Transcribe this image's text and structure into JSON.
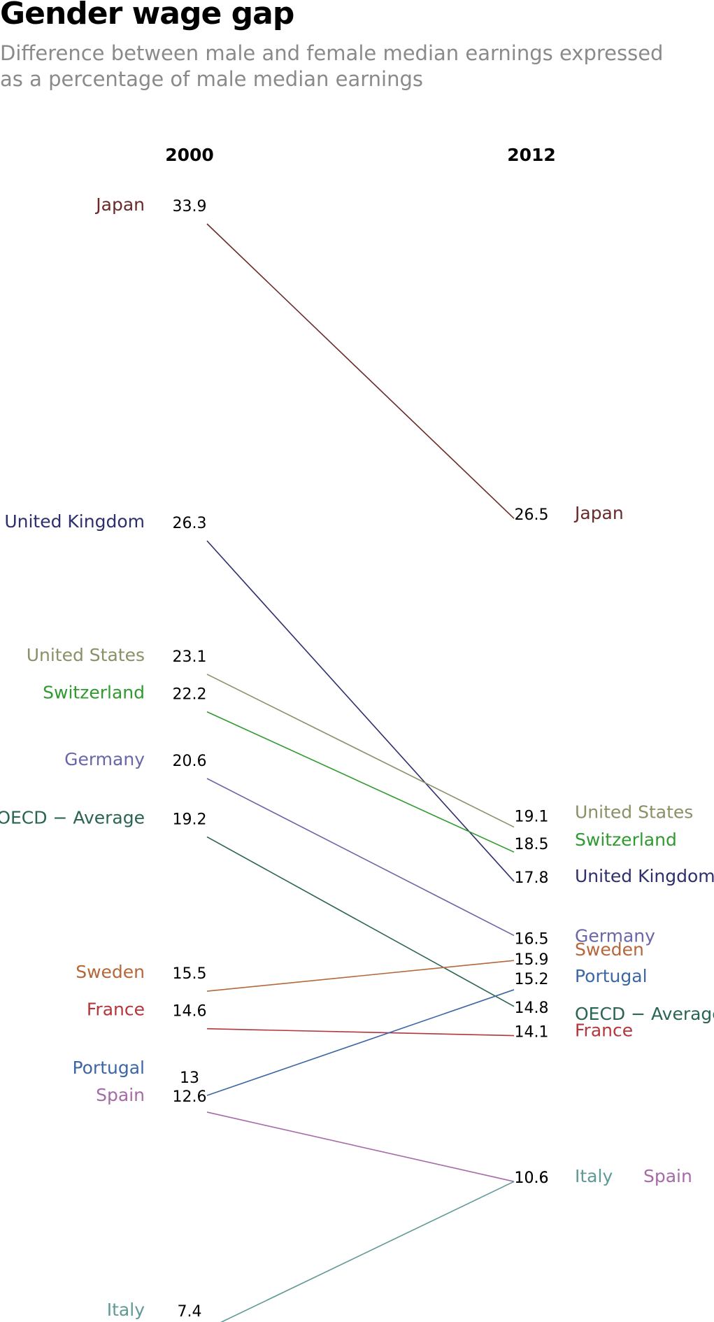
{
  "title": "Gender wage gap",
  "subtitle": "Difference between male and female median earnings expressed as a percentage of male median earnings",
  "chart_data": {
    "type": "line",
    "x": [
      "2000",
      "2012"
    ],
    "series": [
      {
        "name": "Japan",
        "values": [
          33.9,
          26.5
        ],
        "color": "#6b2a2a",
        "values_label": [
          "33.9",
          "26.5"
        ]
      },
      {
        "name": "United Kingdom",
        "values": [
          26.3,
          17.8
        ],
        "color": "#2e2f6f",
        "values_label": [
          "26.3",
          "17.8"
        ]
      },
      {
        "name": "United States",
        "values": [
          23.1,
          19.1
        ],
        "color": "#8a9166",
        "values_label": [
          "23.1",
          "19.1"
        ]
      },
      {
        "name": "Switzerland",
        "values": [
          22.2,
          18.5
        ],
        "color": "#2f9a2f",
        "values_label": [
          "22.2",
          "18.5"
        ]
      },
      {
        "name": "Germany",
        "values": [
          20.6,
          16.5
        ],
        "color": "#6a67a8",
        "values_label": [
          "20.6",
          "16.5"
        ]
      },
      {
        "name": "OECD − Average",
        "values": [
          19.2,
          14.8
        ],
        "color": "#2a6455",
        "values_label": [
          "19.2",
          "14.8"
        ]
      },
      {
        "name": "Sweden",
        "values": [
          15.5,
          15.9
        ],
        "color": "#b5673a",
        "values_label": [
          "15.5",
          "15.9"
        ]
      },
      {
        "name": "France",
        "values": [
          14.6,
          14.1
        ],
        "color": "#b3373c",
        "values_label": [
          "14.6",
          "14.1"
        ]
      },
      {
        "name": "Portugal",
        "values": [
          13,
          15.2
        ],
        "color": "#3d66a6",
        "values_label": [
          "13",
          "15.2"
        ]
      },
      {
        "name": "Spain",
        "values": [
          12.6,
          10.6
        ],
        "color": "#a66aa8",
        "values_label": [
          "12.6",
          "10.6"
        ]
      },
      {
        "name": "Italy",
        "values": [
          7.4,
          10.6
        ],
        "color": "#5f9a96",
        "values_label": [
          "7.4",
          "10.6"
        ]
      }
    ],
    "ylim": [
      7.4,
      33.9
    ],
    "legend": "none",
    "grid": false
  }
}
